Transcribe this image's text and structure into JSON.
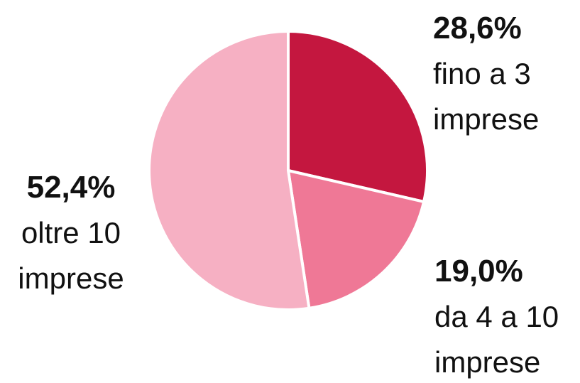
{
  "chart_data": {
    "type": "pie",
    "categories": [
      "fino a 3 imprese",
      "da 4 a 10 imprese",
      "oltre 10 imprese"
    ],
    "values": [
      28.6,
      19.0,
      52.4
    ],
    "value_labels": [
      "28,6%",
      "19,0%",
      "52,4%"
    ],
    "colors": [
      "#c4173f",
      "#ef7896",
      "#f6b0c3"
    ]
  }
}
